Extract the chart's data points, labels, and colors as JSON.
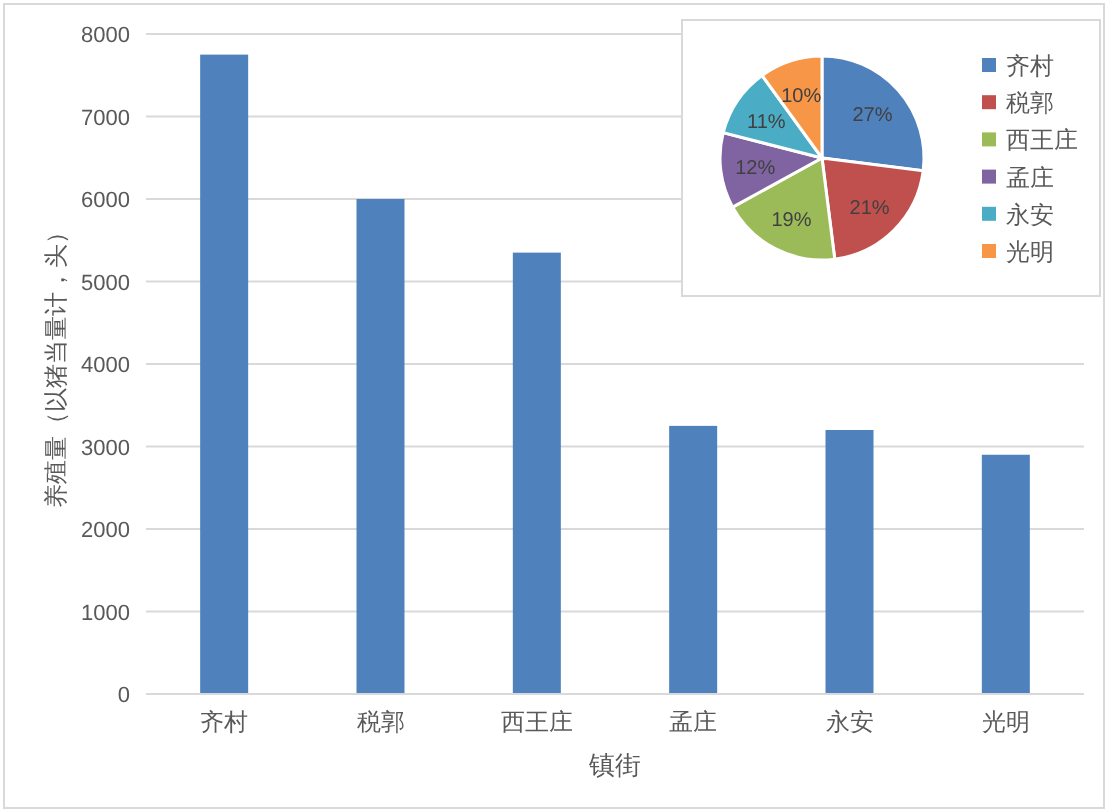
{
  "chart_data": [
    {
      "type": "bar",
      "xlabel": "镇街",
      "ylabel": "养殖量（以猪当量计，头）",
      "categories": [
        "齐村",
        "税郭",
        "西王庄",
        "孟庄",
        "永安",
        "光明"
      ],
      "values": [
        7750,
        6000,
        5350,
        3250,
        3200,
        2900
      ],
      "color": "#4f81bd",
      "ylim": [
        0,
        8000
      ],
      "yticks": [
        0,
        1000,
        2000,
        3000,
        4000,
        5000,
        6000,
        7000,
        8000
      ],
      "grid": "y"
    },
    {
      "type": "pie",
      "categories": [
        "齐村",
        "税郭",
        "西王庄",
        "孟庄",
        "永安",
        "光明"
      ],
      "values": [
        27,
        21,
        19,
        12,
        11,
        10
      ],
      "colors": [
        "#4f81bd",
        "#c0504d",
        "#9bbb59",
        "#8064a2",
        "#4bacc6",
        "#f79646"
      ],
      "value_labels": [
        "27%",
        "21%",
        "19%",
        "12%",
        "11%",
        "10%"
      ],
      "legend": "right"
    }
  ]
}
